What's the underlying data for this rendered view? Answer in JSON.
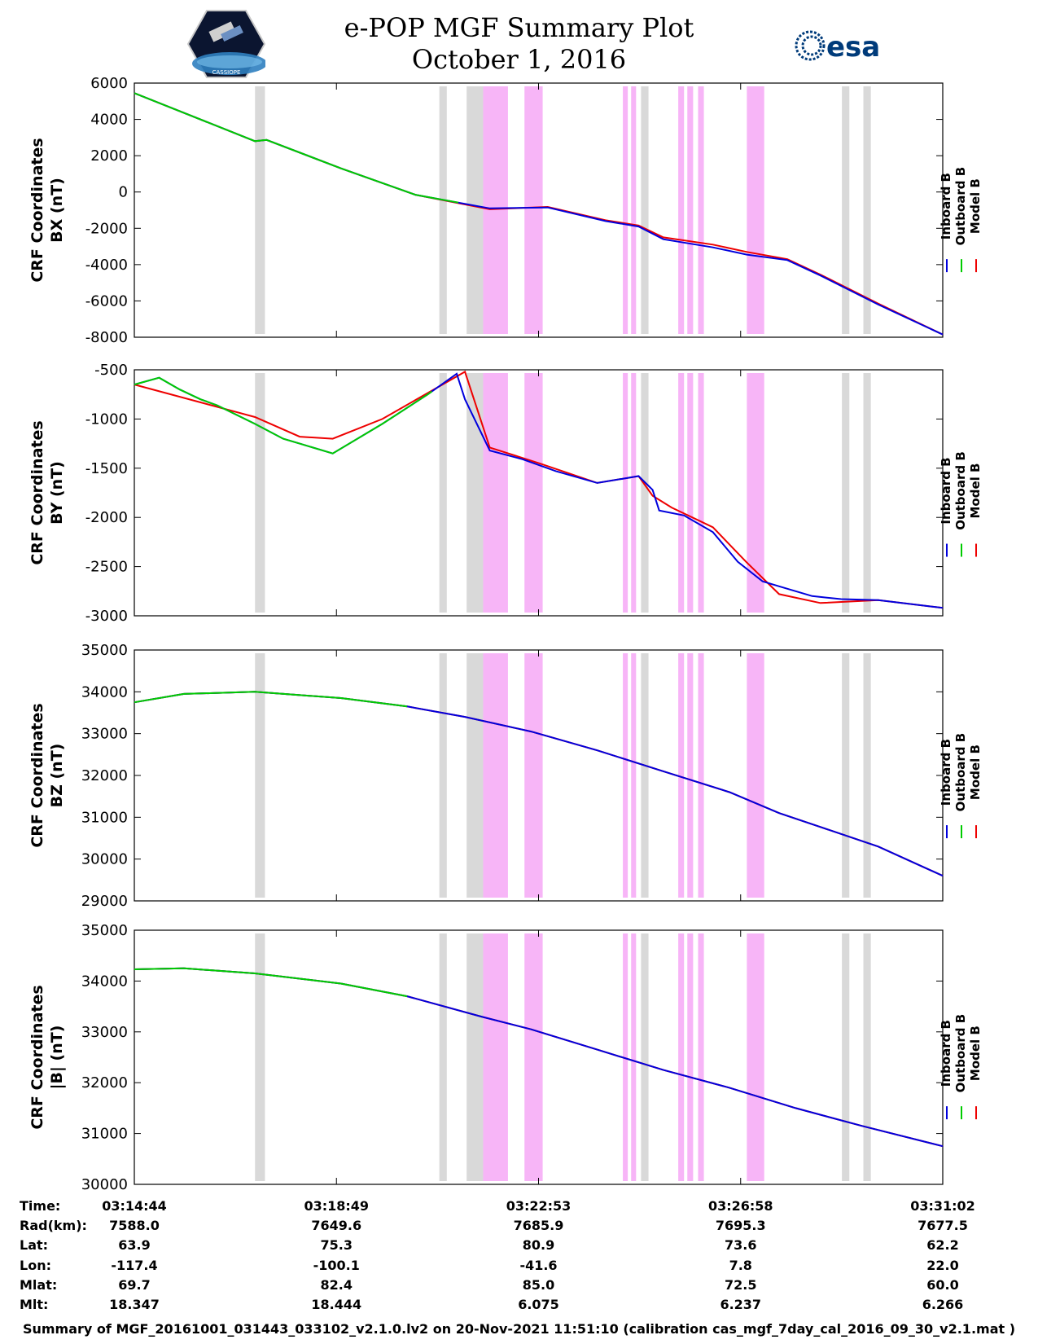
{
  "header": {
    "title_line1": "e-POP MGF Summary Plot",
    "title_line2": "October 1, 2016",
    "left_logo_text": "CASSIOPE",
    "right_logo_text": "esa"
  },
  "colors": {
    "inboard": "#0000dd",
    "outboard": "#00cc00",
    "model": "#ee0000",
    "gray_band": "#d9d9d9",
    "pink_band": "#f7b5f7"
  },
  "legend": [
    "Inboard B",
    "Outboard B",
    "Model B"
  ],
  "chart_data": {
    "type": "line",
    "x_range": [
      0,
      978
    ],
    "x_unit": "seconds since 03:14:44",
    "bands": [
      {
        "color": "gray",
        "start": 146,
        "end": 158
      },
      {
        "color": "gray",
        "start": 369,
        "end": 378
      },
      {
        "color": "gray",
        "start": 402,
        "end": 422
      },
      {
        "color": "pink",
        "start": 422,
        "end": 452
      },
      {
        "color": "pink",
        "start": 472,
        "end": 494
      },
      {
        "color": "pink",
        "start": 591,
        "end": 597
      },
      {
        "color": "pink",
        "start": 601,
        "end": 607
      },
      {
        "color": "gray",
        "start": 613,
        "end": 622
      },
      {
        "color": "pink",
        "start": 658,
        "end": 665
      },
      {
        "color": "pink",
        "start": 669,
        "end": 676
      },
      {
        "color": "pink",
        "start": 682,
        "end": 689
      },
      {
        "color": "pink",
        "start": 741,
        "end": 762
      },
      {
        "color": "gray",
        "start": 856,
        "end": 865
      },
      {
        "color": "gray",
        "start": 882,
        "end": 891
      }
    ],
    "panels": [
      {
        "ylabel1": "CRF Coordinates",
        "ylabel2": "BX (nT)",
        "ylim": [
          -8000,
          6000
        ],
        "yticks": [
          "6000",
          "4000",
          "2000",
          "0",
          "-2000",
          "-4000",
          "-6000",
          "-8000"
        ],
        "green_end": 392,
        "series": [
          {
            "name": "Inboard B",
            "x": [
              0,
              146,
              160,
              250,
              340,
              430,
              500,
              570,
              610,
              640,
              700,
              741,
              790,
              830,
              900,
              978
            ],
            "y": [
              5450,
              2800,
              2870,
              1300,
              -150,
              -900,
              -850,
              -1600,
              -1900,
              -2600,
              -3050,
              -3450,
              -3750,
              -4600,
              -6200,
              -7850
            ]
          },
          {
            "name": "Model B",
            "x": [
              0,
              146,
              160,
              250,
              340,
              430,
              500,
              570,
              610,
              640,
              700,
              741,
              790,
              830,
              900,
              978
            ],
            "y": [
              5450,
              2800,
              2870,
              1300,
              -150,
              -950,
              -820,
              -1550,
              -1850,
              -2500,
              -2900,
              -3300,
              -3700,
              -4550,
              -6150,
              -7850
            ]
          }
        ]
      },
      {
        "ylabel1": "CRF Coordinates",
        "ylabel2": "BY (nT)",
        "ylim": [
          -3000,
          -500
        ],
        "yticks": [
          "-500",
          "-1000",
          "-1500",
          "-2000",
          "-2500",
          "-3000"
        ],
        "green_end": 360,
        "series": [
          {
            "name": "Inboard B",
            "x": [
              0,
              30,
              55,
              80,
              100,
              146,
              180,
              200,
              240,
              300,
              355,
              390,
              400,
              430,
              470,
              510,
              560,
              610,
              627,
              635,
              665,
              700,
              730,
              760,
              780,
              820,
              855,
              900,
              978
            ],
            "y": [
              -650,
              -580,
              -700,
              -800,
              -860,
              -1050,
              -1200,
              -1250,
              -1350,
              -1050,
              -750,
              -540,
              -800,
              -1320,
              -1410,
              -1530,
              -1650,
              -1580,
              -1720,
              -1930,
              -1980,
              -2150,
              -2450,
              -2650,
              -2700,
              -2800,
              -2830,
              -2840,
              -2920
            ]
          },
          {
            "name": "Model B",
            "x": [
              0,
              146,
              200,
              240,
              300,
              400,
              430,
              490,
              560,
              610,
              627,
              650,
              700,
              740,
              780,
              830,
              900,
              978
            ],
            "y": [
              -650,
              -980,
              -1180,
              -1200,
              -1000,
              -520,
              -1290,
              -1450,
              -1650,
              -1580,
              -1780,
              -1900,
              -2100,
              -2450,
              -2780,
              -2870,
              -2840,
              -2920
            ]
          }
        ]
      },
      {
        "ylabel1": "CRF Coordinates",
        "ylabel2": "BZ (nT)",
        "ylim": [
          29000,
          35000
        ],
        "yticks": [
          "35000",
          "34000",
          "33000",
          "32000",
          "31000",
          "30000",
          "29000"
        ],
        "green_end": 330,
        "series": [
          {
            "name": "Inboard B",
            "x": [
              0,
              60,
              146,
              250,
              330,
              400,
              480,
              560,
              640,
              720,
              780,
              840,
              900,
              978
            ],
            "y": [
              33750,
              33950,
              34000,
              33850,
              33650,
              33400,
              33050,
              32600,
              32100,
              31600,
              31100,
              30700,
              30300,
              29600
            ]
          },
          {
            "name": "Model B",
            "x": [
              0,
              60,
              146,
              250,
              330,
              400,
              480,
              560,
              640,
              720,
              780,
              840,
              900,
              978
            ],
            "y": [
              33750,
              33950,
              34000,
              33850,
              33650,
              33400,
              33050,
              32600,
              32100,
              31600,
              31100,
              30700,
              30300,
              29600
            ]
          }
        ]
      },
      {
        "ylabel1": "CRF Coordinates",
        "ylabel2": "|B| (nT)",
        "ylim": [
          30000,
          35000
        ],
        "yticks": [
          "35000",
          "34000",
          "33000",
          "32000",
          "31000",
          "30000"
        ],
        "green_end": 330,
        "series": [
          {
            "name": "Inboard B",
            "x": [
              0,
              60,
              146,
              250,
              330,
              420,
              480,
              560,
              640,
              720,
              800,
              880,
              978
            ],
            "y": [
              34230,
              34250,
              34150,
              33950,
              33700,
              33300,
              33050,
              32650,
              32250,
              31900,
              31500,
              31150,
              30750
            ]
          },
          {
            "name": "Model B",
            "x": [
              0,
              60,
              146,
              250,
              330,
              420,
              480,
              560,
              640,
              720,
              800,
              880,
              978
            ],
            "y": [
              34230,
              34250,
              34150,
              33950,
              33700,
              33300,
              33050,
              32650,
              32250,
              31900,
              31500,
              31150,
              30750
            ]
          }
        ]
      }
    ]
  },
  "time_table": {
    "rows": [
      {
        "label": "Time:",
        "values": [
          "03:14:44",
          "03:18:49",
          "03:22:53",
          "03:26:58",
          "03:31:02"
        ]
      },
      {
        "label": "Rad(km):",
        "values": [
          "7588.0",
          "7649.6",
          "7685.9",
          "7695.3",
          "7677.5"
        ]
      },
      {
        "label": "Lat:",
        "values": [
          "63.9",
          "75.3",
          "80.9",
          "73.6",
          "62.2"
        ]
      },
      {
        "label": "Lon:",
        "values": [
          "-117.4",
          "-100.1",
          "-41.6",
          "7.8",
          "22.0"
        ]
      },
      {
        "label": "Mlat:",
        "values": [
          "69.7",
          "82.4",
          "85.0",
          "72.5",
          "60.0"
        ]
      },
      {
        "label": "Mlt:",
        "values": [
          "18.347",
          "18.444",
          "6.075",
          "6.237",
          "6.266"
        ]
      }
    ]
  },
  "footer": "Summary of MGF_20161001_031443_033102_v2.1.0.lv2 on 20-Nov-2021 11:51:10 (calibration cas_mgf_7day_cal_2016_09_30_v2.1.mat )"
}
